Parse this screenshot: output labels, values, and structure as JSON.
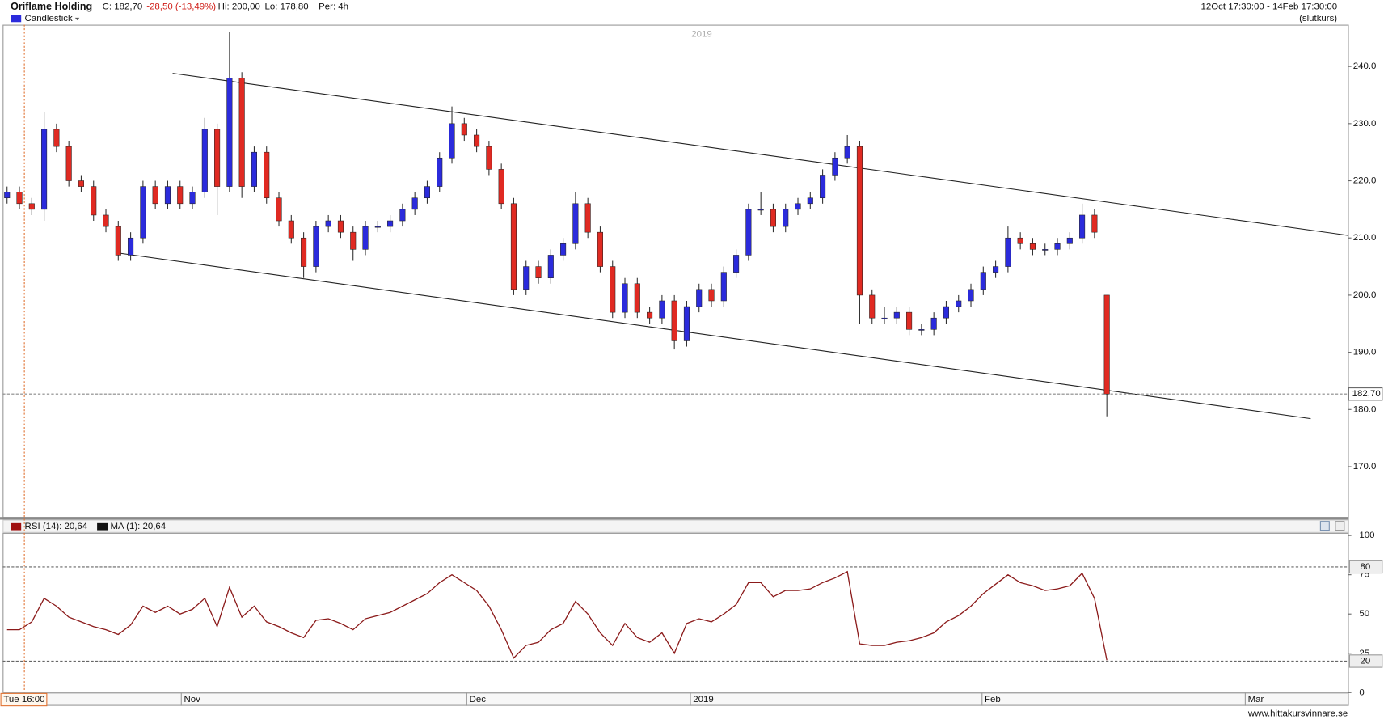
{
  "header": {
    "title": "Oriflame Holding",
    "close": "C: 182,70",
    "change": "-28,50 (-13,49%)",
    "high": "Hi: 200,00",
    "low": "Lo: 178,80",
    "period": "Per: 4h",
    "range": "12Oct 17:30:00 - 14Feb 17:30:00",
    "price_type": "(slutkurs)"
  },
  "chart_data": [
    {
      "type": "candlestick",
      "series_name": "Candlestick",
      "watermark": "2019",
      "up_color": "#2b2bdc",
      "down_color": "#e02a22",
      "open": [
        217,
        218,
        216,
        215,
        229,
        226,
        220,
        219,
        214,
        212,
        207,
        210,
        219,
        216,
        219,
        216,
        218,
        229,
        219,
        238,
        219,
        225,
        217,
        213,
        210,
        205,
        212,
        213,
        211,
        208,
        212,
        212,
        213,
        215,
        217,
        219,
        224,
        230,
        228,
        226,
        222,
        216,
        201,
        205,
        203,
        207,
        209,
        216,
        211,
        205,
        197,
        202,
        197,
        196,
        199,
        192,
        198,
        201,
        199,
        204,
        207,
        215,
        215,
        212,
        215,
        216,
        217,
        221,
        224,
        226,
        200,
        196,
        196,
        197,
        194,
        194,
        196,
        198,
        199,
        201,
        204,
        205,
        210,
        209,
        208,
        208,
        209,
        210,
        214,
        200
      ],
      "high": [
        219,
        219,
        217,
        232,
        230,
        227,
        221,
        220,
        215,
        213,
        211,
        220,
        220,
        220,
        220,
        219,
        231,
        230,
        246,
        239,
        226,
        226,
        218,
        214,
        211,
        213,
        214,
        214,
        212,
        213,
        213,
        214,
        216,
        218,
        220,
        225,
        233,
        231,
        229,
        227,
        223,
        217,
        206,
        206,
        208,
        210,
        218,
        217,
        212,
        206,
        203,
        203,
        198,
        200,
        200,
        199,
        202,
        202,
        205,
        208,
        216,
        218,
        216,
        216,
        217,
        218,
        222,
        225,
        228,
        227,
        201,
        198,
        198,
        198,
        195,
        197,
        199,
        200,
        202,
        205,
        206,
        212,
        211,
        210,
        209,
        210,
        211,
        216,
        215,
        200
      ],
      "low": [
        216,
        215,
        214,
        213,
        225,
        219,
        218,
        213,
        211,
        206,
        206,
        209,
        215,
        215,
        215,
        215,
        217,
        214,
        218,
        217,
        218,
        216,
        212,
        209,
        203,
        204,
        211,
        210,
        206,
        207,
        211,
        211,
        212,
        214,
        216,
        218,
        223,
        227,
        225,
        221,
        215,
        200,
        200,
        202,
        202,
        206,
        208,
        210,
        204,
        196,
        196,
        196,
        195,
        195,
        190.5,
        191,
        197,
        198,
        198,
        203,
        206,
        214,
        211,
        211,
        214,
        215,
        216,
        220,
        223,
        195,
        195,
        195,
        195,
        193,
        193,
        193,
        195,
        197,
        198,
        200,
        203,
        204,
        208,
        207,
        207,
        207,
        208,
        209,
        210,
        178.8
      ],
      "close": [
        218,
        216,
        215,
        229,
        226,
        220,
        219,
        214,
        212,
        207,
        210,
        219,
        216,
        219,
        216,
        218,
        229,
        219,
        238,
        219,
        225,
        217,
        213,
        210,
        205,
        212,
        213,
        211,
        208,
        212,
        212,
        213,
        215,
        217,
        219,
        224,
        230,
        228,
        226,
        222,
        216,
        201,
        205,
        203,
        207,
        209,
        216,
        211,
        205,
        197,
        202,
        197,
        196,
        199,
        192,
        198,
        201,
        199,
        204,
        207,
        215,
        215,
        212,
        215,
        216,
        217,
        221,
        224,
        226,
        200,
        196,
        196,
        197,
        194,
        194,
        196,
        198,
        199,
        201,
        204,
        205,
        210,
        209,
        208,
        208,
        209,
        210,
        214,
        211,
        182.7
      ],
      "trendlines": [
        {
          "x": [
            13.4,
            108.7
          ],
          "y": [
            238.8,
            210.4
          ]
        },
        {
          "x": [
            8.9,
            105.5
          ],
          "y": [
            207.4,
            178.4
          ]
        }
      ],
      "last_price": {
        "value": 182.7,
        "label": "182,70"
      },
      "cursor": {
        "value": 1.4,
        "label": "Tue 16:00"
      },
      "xlim": [
        0,
        108.5
      ],
      "xticks": [
        {
          "value": 14.1,
          "label": "Nov"
        },
        {
          "value": 37.2,
          "label": "Dec"
        },
        {
          "value": 55.3,
          "label": "2019"
        },
        {
          "value": 78.9,
          "label": "Feb"
        },
        {
          "value": 100.2,
          "label": "Mar"
        }
      ],
      "ylim": [
        161.2,
        247.3
      ],
      "yticks": [
        {
          "value": 170,
          "label": "170.0"
        },
        {
          "value": 180,
          "label": "180.0"
        },
        {
          "value": 190,
          "label": "190.0"
        },
        {
          "value": 200,
          "label": "200.0"
        },
        {
          "value": 210,
          "label": "210.0"
        },
        {
          "value": 220,
          "label": "220.0"
        },
        {
          "value": 230,
          "label": "230.0"
        },
        {
          "value": 240,
          "label": "240.0"
        }
      ]
    },
    {
      "type": "line",
      "series": [
        {
          "name": "RSI (14): 20,64",
          "color": "#8b1a1a",
          "values": [
            40,
            40,
            45,
            60,
            55,
            48,
            45,
            42,
            40,
            37,
            43,
            55,
            51,
            55,
            50,
            53,
            60,
            42,
            67,
            48,
            55,
            45,
            42,
            38,
            35,
            46,
            47,
            44,
            40,
            47,
            49,
            51,
            55,
            59,
            63,
            70,
            75,
            70,
            65,
            55,
            40,
            22,
            30,
            32,
            40,
            44,
            58,
            50,
            38,
            30,
            44,
            35,
            32,
            38,
            25,
            44,
            47,
            45,
            50,
            56,
            70,
            70,
            61,
            65,
            65,
            66,
            70,
            73,
            77,
            31,
            30,
            30,
            32,
            33,
            35,
            38,
            45,
            49,
            55,
            63,
            69,
            75,
            70,
            68,
            65,
            66,
            68,
            76,
            60,
            20.64
          ]
        }
      ],
      "extra_legend": {
        "name": "MA (1): 20,64",
        "color": "#111111"
      },
      "levels": [
        80,
        20
      ],
      "xlim": [
        0,
        108.5
      ],
      "ylim": [
        0,
        101.7
      ],
      "yticks": [
        0,
        25,
        50,
        75,
        100
      ]
    }
  ],
  "footer": {
    "source": "www.hittakursvinnare.se"
  }
}
